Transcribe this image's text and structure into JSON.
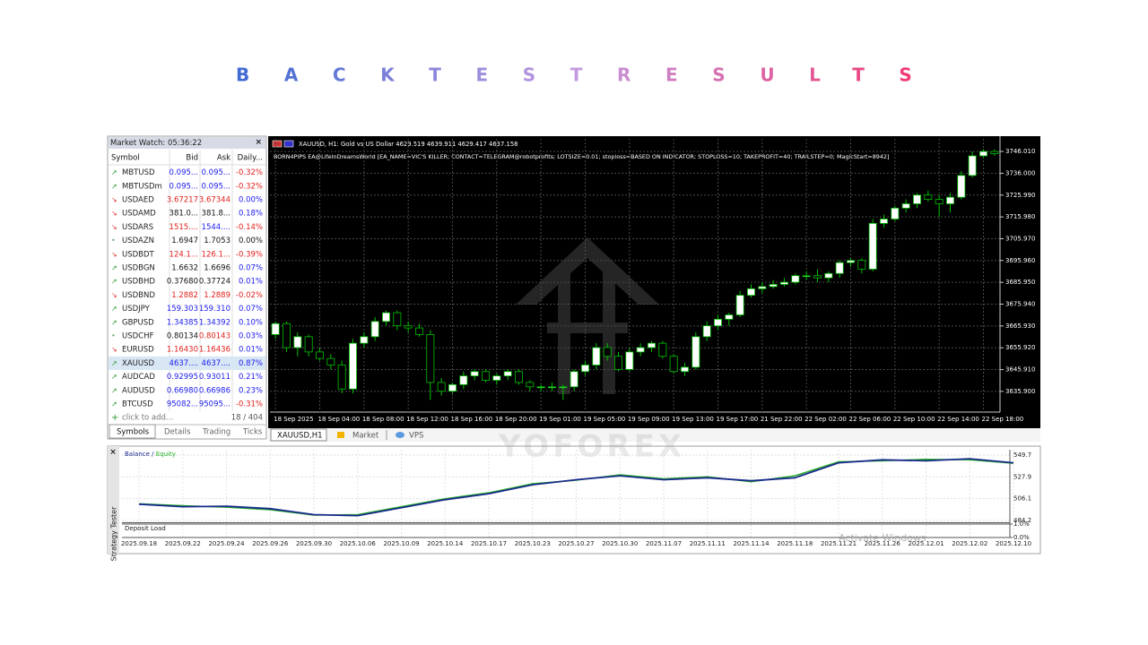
{
  "title": "BACKTESTRESULTS",
  "market_watch": {
    "header": "Market Watch: 05:36:22",
    "columns": [
      "Symbol",
      "Bid",
      "Ask",
      "Daily..."
    ],
    "selected_row": 14,
    "rows": [
      {
        "symbol": "MBTUSD",
        "bid": "0.095...",
        "ask": "0.095...",
        "daily": "-0.32%",
        "trend": "up",
        "colors": [
          "blue",
          "blue",
          "red"
        ]
      },
      {
        "symbol": "MBTUSDm",
        "bid": "0.095...",
        "ask": "0.095...",
        "daily": "-0.32%",
        "trend": "up",
        "colors": [
          "blue",
          "blue",
          "red"
        ]
      },
      {
        "symbol": "USDAED",
        "bid": "3.67217",
        "ask": "3.67344",
        "daily": "0.00%",
        "trend": "down",
        "colors": [
          "red",
          "red",
          "blue"
        ]
      },
      {
        "symbol": "USDAMD",
        "bid": "381.0...",
        "ask": "381.8...",
        "daily": "0.18%",
        "trend": "down",
        "colors": [
          "black",
          "black",
          "blue"
        ]
      },
      {
        "symbol": "USDARS",
        "bid": "1515....",
        "ask": "1544....",
        "daily": "-0.14%",
        "trend": "down",
        "colors": [
          "red",
          "blue",
          "red"
        ]
      },
      {
        "symbol": "USDAZN",
        "bid": "1.6947",
        "ask": "1.7053",
        "daily": "0.00%",
        "trend": "flat",
        "colors": [
          "black",
          "black",
          "black"
        ]
      },
      {
        "symbol": "USDBDT",
        "bid": "124.1...",
        "ask": "126.1...",
        "daily": "-0.39%",
        "trend": "down",
        "colors": [
          "red",
          "red",
          "red"
        ]
      },
      {
        "symbol": "USDBGN",
        "bid": "1.6632",
        "ask": "1.6696",
        "daily": "0.07%",
        "trend": "up",
        "colors": [
          "black",
          "black",
          "blue"
        ]
      },
      {
        "symbol": "USDBHD",
        "bid": "0.37680",
        "ask": "0.37724",
        "daily": "0.01%",
        "trend": "up",
        "colors": [
          "black",
          "black",
          "blue"
        ]
      },
      {
        "symbol": "USDBND",
        "bid": "1.2882",
        "ask": "1.2889",
        "daily": "-0.02%",
        "trend": "down",
        "colors": [
          "red",
          "red",
          "red"
        ]
      },
      {
        "symbol": "USDJPY",
        "bid": "159.303",
        "ask": "159.310",
        "daily": "0.07%",
        "trend": "up",
        "colors": [
          "blue",
          "blue",
          "blue"
        ]
      },
      {
        "symbol": "GBPUSD",
        "bid": "1.34385",
        "ask": "1.34392",
        "daily": "0.10%",
        "trend": "up",
        "colors": [
          "blue",
          "blue",
          "blue"
        ]
      },
      {
        "symbol": "USDCHF",
        "bid": "0.80134",
        "ask": "0.80143",
        "daily": "0.03%",
        "trend": "flat",
        "colors": [
          "black",
          "red",
          "blue"
        ]
      },
      {
        "symbol": "EURUSD",
        "bid": "1.16430",
        "ask": "1.16436",
        "daily": "0.01%",
        "trend": "down",
        "colors": [
          "red",
          "red",
          "blue"
        ]
      },
      {
        "symbol": "XAUUSD",
        "bid": "4637....",
        "ask": "4637....",
        "daily": "0.87%",
        "trend": "up",
        "colors": [
          "blue",
          "blue",
          "blue"
        ]
      },
      {
        "symbol": "AUDCAD",
        "bid": "0.92995",
        "ask": "0.93011",
        "daily": "0.21%",
        "trend": "up",
        "colors": [
          "blue",
          "blue",
          "blue"
        ]
      },
      {
        "symbol": "AUDUSD",
        "bid": "0.66980",
        "ask": "0.66986",
        "daily": "0.23%",
        "trend": "up",
        "colors": [
          "blue",
          "blue",
          "blue"
        ]
      },
      {
        "symbol": "BTCUSD",
        "bid": "95082...",
        "ask": "95095...",
        "daily": "-0.31%",
        "trend": "up",
        "colors": [
          "blue",
          "blue",
          "red"
        ]
      }
    ],
    "footer_add": "click to add...",
    "footer_count": "18 / 404",
    "tabs": [
      "Symbols",
      "Details",
      "Trading",
      "Ticks"
    ]
  },
  "price_chart": {
    "header": "XAUUSD, H1:  Gold vs US Dollar  4629.519 4639.911 4629.417 4637.158",
    "ea_line": "BORN4PIPS EA@LifeInDreamsWorld [EA_NAME=VIC'S KILLER; CONTACT=TELEGRAM@robotprofits; LOTSIZE=0.01; stoploss=BASED ON INDICATOR; STOPLOSS=10; TAKEPROFIT=40; TRAILSTEP=0; MagicStart=8942]",
    "ylim": [
      3626.4,
      3751.8
    ],
    "yticks": [
      {
        "value": 3746.01,
        "label": "3746.010"
      },
      {
        "value": 3736,
        "label": "3736.000"
      },
      {
        "value": 3725.99,
        "label": "3725.990"
      },
      {
        "value": 3715.98,
        "label": "3715.980"
      },
      {
        "value": 3705.97,
        "label": "3705.970"
      },
      {
        "value": 3695.96,
        "label": "3695.960"
      },
      {
        "value": 3685.95,
        "label": "3685.950"
      },
      {
        "value": 3675.94,
        "label": "3675.940"
      },
      {
        "value": 3665.93,
        "label": "3665.930"
      },
      {
        "value": 3655.92,
        "label": "3655.920"
      },
      {
        "value": 3645.91,
        "label": "3645.910"
      },
      {
        "value": 3635.9,
        "label": "3635.900"
      }
    ],
    "grid": true,
    "categories": [
      "18 Sep 2025",
      null,
      null,
      null,
      "18 Sep 04:00",
      null,
      null,
      null,
      "18 Sep 08:00",
      null,
      null,
      null,
      "18 Sep 12:00",
      null,
      null,
      null,
      "18 Sep 16:00",
      null,
      null,
      null,
      "18 Sep 20:00",
      null,
      null,
      null,
      "19 Sep 01:00",
      null,
      null,
      null,
      "19 Sep 05:00",
      null,
      null,
      null,
      "19 Sep 09:00",
      null,
      null,
      null,
      "19 Sep 13:00",
      null,
      null,
      null,
      "19 Sep 17:00",
      null,
      null,
      null,
      "21 Sep 22:00",
      null,
      null,
      null,
      "22 Sep 02:00",
      null,
      null,
      null,
      "22 Sep 06:00",
      null,
      null,
      null,
      "22 Sep 10:00",
      null,
      null,
      null,
      "22 Sep 14:00",
      null,
      null,
      null,
      "22 Sep 18:00",
      null
    ],
    "candles": [
      [
        3662,
        3668,
        3660,
        3667
      ],
      [
        3667,
        3668,
        3654,
        3656
      ],
      [
        3656,
        3663,
        3652,
        3661
      ],
      [
        3661,
        3662,
        3652,
        3654
      ],
      [
        3654,
        3656,
        3650,
        3651
      ],
      [
        3651,
        3653,
        3646,
        3648
      ],
      [
        3648,
        3650,
        3635,
        3637
      ],
      [
        3637,
        3660,
        3635,
        3658
      ],
      [
        3658,
        3663,
        3656,
        3661
      ],
      [
        3661,
        3670,
        3659,
        3668
      ],
      [
        3668,
        3673,
        3666,
        3672
      ],
      [
        3672,
        3673,
        3664,
        3666
      ],
      [
        3666,
        3668,
        3663,
        3665
      ],
      [
        3665,
        3667,
        3661,
        3662
      ],
      [
        3662,
        3664,
        3632,
        3640
      ],
      [
        3640,
        3642,
        3634,
        3636
      ],
      [
        3636,
        3640,
        3635,
        3639
      ],
      [
        3639,
        3645,
        3637,
        3643
      ],
      [
        3643,
        3646,
        3641,
        3645
      ],
      [
        3645,
        3646,
        3640,
        3641
      ],
      [
        3641,
        3644,
        3639,
        3643
      ],
      [
        3643,
        3646,
        3641,
        3645
      ],
      [
        3645,
        3646,
        3639,
        3640
      ],
      [
        3640,
        3641,
        3636,
        3638
      ],
      [
        3638,
        3639,
        3636,
        3638
      ],
      [
        3638,
        3640,
        3636,
        3638
      ],
      [
        3638,
        3639,
        3632,
        3638
      ],
      [
        3638,
        3646,
        3636,
        3645
      ],
      [
        3645,
        3650,
        3643,
        3648
      ],
      [
        3648,
        3658,
        3646,
        3656
      ],
      [
        3656,
        3658,
        3650,
        3652
      ],
      [
        3652,
        3654,
        3645,
        3646
      ],
      [
        3646,
        3656,
        3645,
        3654
      ],
      [
        3654,
        3658,
        3652,
        3656
      ],
      [
        3656,
        3659,
        3654,
        3658
      ],
      [
        3658,
        3659,
        3651,
        3652
      ],
      [
        3652,
        3653,
        3644,
        3645
      ],
      [
        3645,
        3649,
        3643,
        3647
      ],
      [
        3647,
        3663,
        3646,
        3661
      ],
      [
        3661,
        3668,
        3659,
        3666
      ],
      [
        3666,
        3671,
        3664,
        3669
      ],
      [
        3669,
        3672,
        3666,
        3671
      ],
      [
        3671,
        3682,
        3670,
        3680
      ],
      [
        3680,
        3685,
        3679,
        3683
      ],
      [
        3683,
        3686,
        3681,
        3684
      ],
      [
        3684,
        3687,
        3683,
        3685
      ],
      [
        3685,
        3688,
        3684,
        3686
      ],
      [
        3686,
        3690,
        3685,
        3689
      ],
      [
        3689,
        3691,
        3687,
        3689
      ],
      [
        3689,
        3692,
        3686,
        3688
      ],
      [
        3688,
        3691,
        3686,
        3690
      ],
      [
        3690,
        3696,
        3688,
        3695
      ],
      [
        3695,
        3697,
        3693,
        3696
      ],
      [
        3696,
        3697,
        3690,
        3692
      ],
      [
        3692,
        3715,
        3691,
        3713
      ],
      [
        3713,
        3717,
        3711,
        3715
      ],
      [
        3715,
        3721,
        3714,
        3720
      ],
      [
        3720,
        3724,
        3718,
        3722
      ],
      [
        3722,
        3727,
        3720,
        3726
      ],
      [
        3726,
        3728,
        3723,
        3724
      ],
      [
        3724,
        3726,
        3716,
        3722
      ],
      [
        3722,
        3727,
        3718,
        3725
      ],
      [
        3725,
        3737,
        3724,
        3735
      ],
      [
        3735,
        3746,
        3734,
        3744
      ],
      [
        3744,
        3747,
        3743,
        3746
      ],
      [
        3746,
        3747,
        3744,
        3745
      ]
    ],
    "bull_color": "#ffffff",
    "bear_color": "#000000",
    "wick_color": "#00c000"
  },
  "chart_tabs": [
    "XAUUSD,H1",
    "Market",
    "VPS"
  ],
  "watermark": "YOFOREX",
  "tester": {
    "side_label": "Strategy Tester",
    "legend_balance": "Balance",
    "legend_sep": " / ",
    "legend_equity": "Equity",
    "deposit_label": "Deposit Load",
    "ylim": [
      482.4,
      555.1
    ],
    "yticks": [
      549.7,
      527.9,
      506.1,
      484.2
    ],
    "deposit_ylim": [
      0,
      1
    ],
    "deposit_yticks": [
      {
        "value": 1,
        "label": "1.0%"
      },
      {
        "value": 0,
        "label": "0.0%"
      }
    ],
    "x": [
      "2025.09.18",
      "2025.09.22",
      "2025.09.24",
      "2025.09.26",
      "2025.09.30",
      "2025.10.06",
      "2025.10.09",
      "2025.10.14",
      "2025.10.17",
      "2025.10.23",
      "2025.10.27",
      "2025.10.30",
      "2025.11.07",
      "2025.11.11",
      "2025.11.14",
      "2025.11.18",
      "2025.11.21",
      "2025.11.26",
      "2025.12.01",
      "2025.12.02",
      "2025.12.10"
    ],
    "series": [
      {
        "name": "Balance",
        "color": "#1a2a8c",
        "values": [
          500.5,
          498,
          498.5,
          496,
          490,
          489,
          497,
          505,
          511,
          520,
          525,
          529,
          525,
          527,
          524,
          527,
          542,
          545,
          544,
          546,
          542
        ]
      },
      {
        "name": "Equity",
        "color": "#22b022",
        "values": [
          501,
          499,
          497.5,
          495,
          489.5,
          490,
          498,
          506,
          512,
          521,
          524.5,
          530,
          526,
          528,
          523,
          529,
          543,
          544,
          545.5,
          545,
          541.5
        ]
      }
    ]
  },
  "activation_notice": "Activate Windows"
}
